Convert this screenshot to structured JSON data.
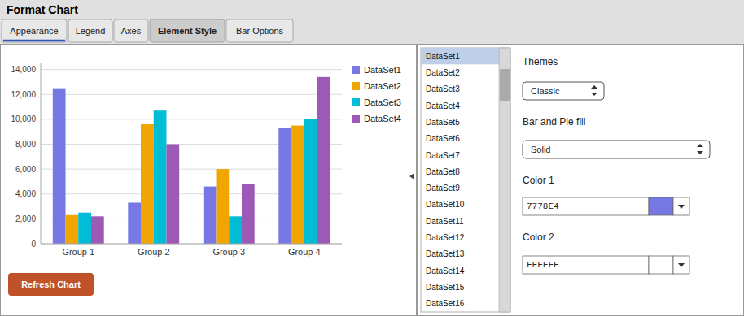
{
  "chart_data": {
    "type": "bar",
    "title": "Format Chart",
    "categories": [
      "Group 1",
      "Group 2",
      "Group 3",
      "Group 4"
    ],
    "series": [
      {
        "name": "DataSet1",
        "color": "#7778E4",
        "values": [
          12500,
          3300,
          4600,
          9300
        ]
      },
      {
        "name": "DataSet2",
        "color": "#F0A500",
        "values": [
          2300,
          9600,
          6000,
          9500
        ]
      },
      {
        "name": "DataSet3",
        "color": "#00BCD4",
        "values": [
          2500,
          10700,
          2200,
          10000
        ]
      },
      {
        "name": "DataSet4",
        "color": "#9C59B6",
        "values": [
          2200,
          8000,
          4800,
          13400
        ]
      }
    ],
    "ylim": [
      0,
      14500
    ],
    "yticks": [
      0,
      {
        "value": 2000,
        "label": "2,000"
      },
      {
        "value": 4000,
        "label": "4,000"
      },
      {
        "value": 6000,
        "label": "6,000"
      },
      {
        "value": 8000,
        "label": "8,000"
      },
      {
        "value": 10000,
        "label": "10,000"
      },
      {
        "value": 12000,
        "label": "12,000"
      },
      {
        "value": 14000,
        "label": "14,000"
      }
    ],
    "grid": true,
    "legend": "right",
    "annotations": [
      "Appearance",
      "Legend",
      "Axes",
      "Element Style",
      "Bar Options",
      "Refresh Chart",
      "DataSet1",
      "DataSet2",
      "DataSet3",
      "DataSet4",
      "DataSet5",
      "DataSet6",
      "DataSet7",
      "DataSet8",
      "DataSet9",
      "DataSet10",
      "DataSet11",
      "DataSet12",
      "DataSet13",
      "DataSet14",
      "DataSet15",
      "DataSet16",
      "Themes",
      "Classic",
      "Bar and Pie fill",
      "Solid",
      "Color 1",
      "7778E4",
      "Color 2",
      "FFFFFF"
    ]
  }
}
